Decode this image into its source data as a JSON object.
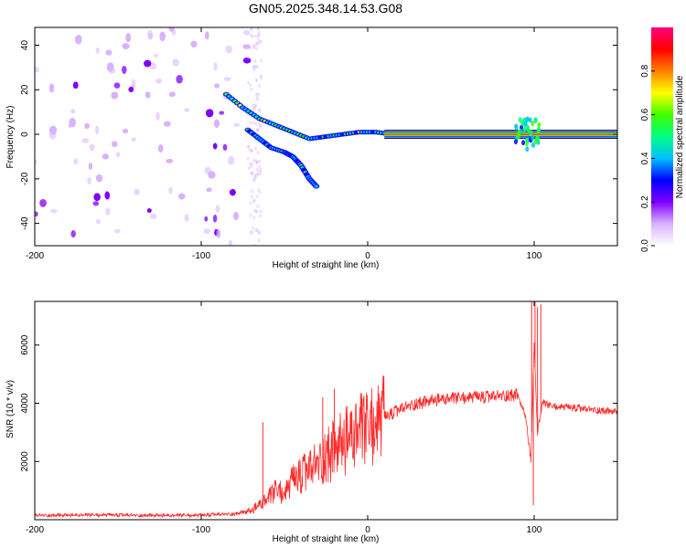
{
  "title": "GN05.2025.348.14.53.G08",
  "chart_data": [
    {
      "type": "heatmap",
      "title": "",
      "xlabel": "Height of straight line (km)",
      "ylabel": "Frequency (Hz)",
      "xlim": [
        -200,
        150
      ],
      "ylim": [
        -50,
        48
      ],
      "x_ticks": [
        -200,
        -100,
        0,
        100
      ],
      "y_ticks": [
        -40,
        -20,
        0,
        20,
        40
      ],
      "grid": false,
      "description_points": {
        "noise_region_x": [
          -200,
          -72
        ],
        "upper_branch": [
          [
            -85,
            18
          ],
          [
            -75,
            12
          ],
          [
            -65,
            7
          ],
          [
            -55,
            4
          ],
          [
            -45,
            1
          ],
          [
            -35,
            -2
          ],
          [
            -25,
            -1
          ],
          [
            -15,
            0
          ],
          [
            -5,
            1
          ],
          [
            5,
            1
          ],
          [
            15,
            0
          ]
        ],
        "lower_branch": [
          [
            -72,
            2
          ],
          [
            -65,
            -2
          ],
          [
            -58,
            -6
          ],
          [
            -50,
            -8
          ],
          [
            -45,
            -10
          ],
          [
            -40,
            -14
          ],
          [
            -35,
            -20
          ],
          [
            -30,
            -24
          ]
        ],
        "carrier_line_x": [
          10,
          150
        ],
        "carrier_freq": 0,
        "burst_x": [
          88,
          104
        ]
      },
      "colorbar": {
        "label": "Normalized spectral amplitude",
        "range": [
          0.0,
          1.0
        ],
        "ticks": [
          "0.0",
          "0.2",
          "0.4",
          "0.6",
          "0.8"
        ],
        "colors": [
          "#ffffff",
          "#d9b3ff",
          "#7f00ff",
          "#0000ff",
          "#00c0ff",
          "#00ff80",
          "#40ff00",
          "#ffff00",
          "#ff8000",
          "#ff0000",
          "#ff0080"
        ]
      }
    },
    {
      "type": "line",
      "title": "",
      "xlabel": "Height of straight line (km)",
      "ylabel": "SNR (10 * v/v)",
      "xlim": [
        -200,
        150
      ],
      "ylim": [
        0,
        7500
      ],
      "x_ticks": [
        -200,
        -100,
        0,
        100
      ],
      "y_ticks": [
        2000,
        4000,
        6000
      ],
      "grid": false,
      "line_color": "#ff2a2a",
      "series": [
        {
          "x": [
            -200,
            -180,
            -160,
            -140,
            -120,
            -100,
            -80,
            -70,
            -60,
            -55,
            -50,
            -45,
            -40,
            -35,
            -30,
            -25,
            -20,
            -15,
            -10,
            -5,
            0,
            10,
            20,
            30,
            40,
            50,
            60,
            70,
            80,
            90,
            95,
            98,
            100,
            102,
            105,
            110,
            120,
            130,
            140,
            150
          ],
          "values": [
            150,
            150,
            160,
            150,
            140,
            150,
            200,
            300,
            700,
            1000,
            900,
            1300,
            1500,
            1700,
            1900,
            2200,
            2400,
            2600,
            2800,
            3000,
            3100,
            3500,
            3800,
            4000,
            4100,
            4150,
            4200,
            4200,
            4250,
            4300,
            3500,
            2000,
            6000,
            3000,
            4000,
            3900,
            3850,
            3800,
            3750,
            3700
          ]
        }
      ],
      "spikes": [
        {
          "x": -63,
          "y": 3350
        },
        {
          "x": -27,
          "y": 4200
        },
        {
          "x": -20,
          "y": 4500
        },
        {
          "x": 98.5,
          "y": 7500
        },
        {
          "x": 99.5,
          "y": 500
        },
        {
          "x": 100.5,
          "y": 7500
        },
        {
          "x": 102,
          "y": 7300
        },
        {
          "x": 104,
          "y": 7400
        }
      ]
    }
  ]
}
